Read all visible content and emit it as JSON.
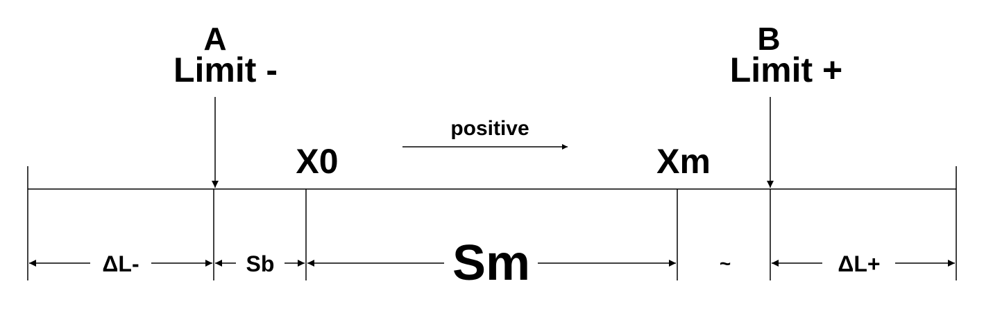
{
  "labels": {
    "a": "A",
    "limit_minus": "Limit -",
    "b": "B",
    "limit_plus": "Limit +",
    "positive": "positive",
    "x0": "X0",
    "xm": "Xm",
    "delta_l_minus": "ΔL-",
    "sb": "Sb",
    "sm": "Sm",
    "gap": "~",
    "delta_l_plus": "ΔL+"
  },
  "colors": {
    "line": "#000000",
    "background": "#ffffff"
  }
}
